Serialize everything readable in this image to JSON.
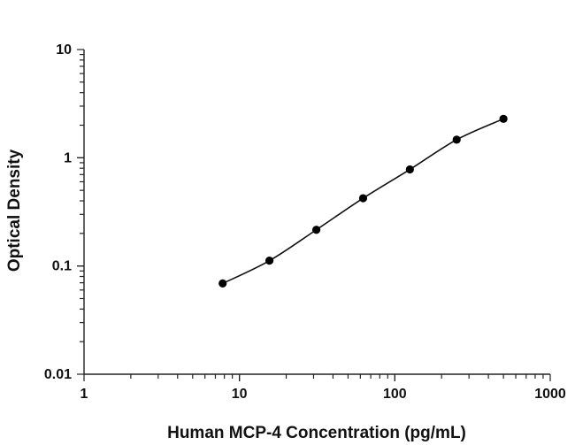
{
  "chart_data": {
    "type": "scatter",
    "xlabel": "Human MCP-4 Concentration (pg/mL)",
    "ylabel": "Optical Density",
    "xscale": "log",
    "yscale": "log",
    "xlim": [
      1,
      1000
    ],
    "ylim": [
      0.01,
      10
    ],
    "xticks": [
      "1",
      "10",
      "100",
      "1000"
    ],
    "yticks": [
      "10",
      "1",
      "0.1",
      "0.01"
    ],
    "grid": false,
    "legend": "none",
    "series": [
      {
        "x": [
          7.8,
          15.6,
          31.25,
          62.5,
          125,
          250,
          500
        ],
        "y": [
          0.069,
          0.112,
          0.216,
          0.423,
          0.78,
          1.47,
          2.29
        ],
        "color": "#000000",
        "fit": "smooth curve"
      }
    ]
  }
}
